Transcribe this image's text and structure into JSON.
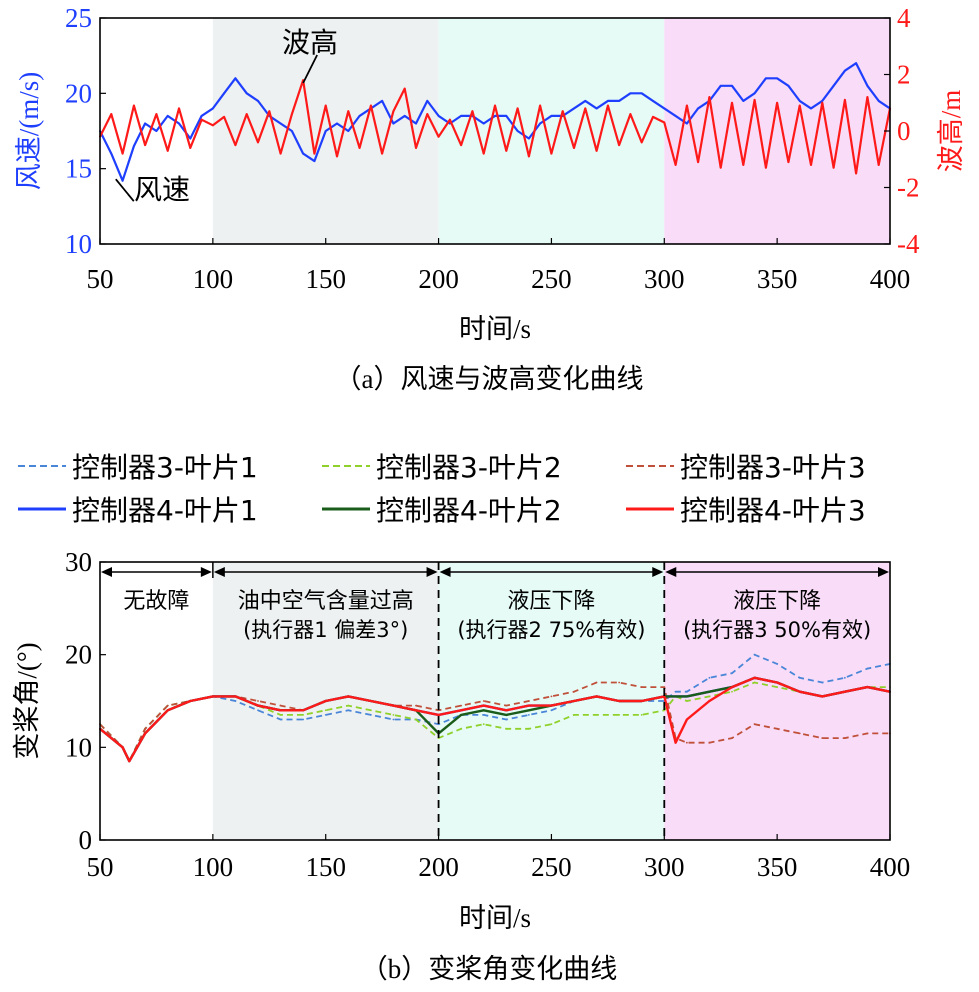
{
  "colors": {
    "blue": "#1f3fff",
    "red": "#ff1a1a",
    "green": "#8fd12a",
    "dark_green": "#1a5c1a",
    "brown": "#c0503a",
    "light_blue": "#4a86d8",
    "shade_gray": "#eef1f1",
    "shade_cyan": "#e6fbf6",
    "shade_pink": "#f8dcf8",
    "black": "#000000"
  },
  "chart_data": [
    {
      "type": "line",
      "panel": "a",
      "caption": "（a）风速与波高变化曲线",
      "xlabel": "时间/s",
      "ylabel_left": "风速/(m/s)",
      "ylabel_right": "波高/m",
      "xlim": [
        50,
        400
      ],
      "ylim_left": [
        10,
        25
      ],
      "ylim_right": [
        -4,
        4
      ],
      "x_ticks": [
        50,
        100,
        150,
        200,
        250,
        300,
        350,
        400
      ],
      "y_ticks_left": [
        10,
        15,
        20,
        25
      ],
      "y_ticks_right": [
        -4,
        -2,
        0,
        2,
        4
      ],
      "x_tick_labels": [
        "50",
        "100",
        "150",
        "200",
        "250",
        "300",
        "350",
        "400"
      ],
      "y_tick_labels_left": [
        "10",
        "15",
        "20",
        "25"
      ],
      "y_tick_labels_right": [
        "-4",
        "-2",
        "0",
        "2",
        "4"
      ],
      "regions": [
        {
          "x0": 100,
          "x1": 200,
          "color": "#eef1f1"
        },
        {
          "x0": 200,
          "x1": 300,
          "color": "#e6fbf6"
        },
        {
          "x0": 300,
          "x1": 400,
          "color": "#f8dcf8"
        }
      ],
      "annotations": [
        {
          "text": "波高",
          "x": 140,
          "y_right": 1.7
        },
        {
          "text": "风速",
          "x": 57,
          "y_left": 14.3
        }
      ],
      "series": [
        {
          "name": "风速",
          "axis": "left",
          "color": "#1f3fff",
          "x": [
            50,
            55,
            60,
            65,
            70,
            75,
            80,
            85,
            90,
            95,
            100,
            105,
            110,
            115,
            120,
            125,
            130,
            135,
            140,
            145,
            150,
            155,
            160,
            165,
            170,
            175,
            180,
            185,
            190,
            195,
            200,
            205,
            210,
            215,
            220,
            225,
            230,
            235,
            240,
            245,
            250,
            255,
            260,
            265,
            270,
            275,
            280,
            285,
            290,
            295,
            300,
            305,
            310,
            315,
            320,
            325,
            330,
            335,
            340,
            345,
            350,
            355,
            360,
            365,
            370,
            375,
            380,
            385,
            390,
            395,
            400
          ],
          "y": [
            17.5,
            16.0,
            14.2,
            16.5,
            18.0,
            17.5,
            18.5,
            18.0,
            17.0,
            18.5,
            19.0,
            20.0,
            21.0,
            20.0,
            19.5,
            18.5,
            18.0,
            17.5,
            16.0,
            15.5,
            17.5,
            18.0,
            17.5,
            18.5,
            19.0,
            19.5,
            18.0,
            18.5,
            18.0,
            19.5,
            18.5,
            18.0,
            18.5,
            18.5,
            18.0,
            18.5,
            18.5,
            17.5,
            17.0,
            18.0,
            18.5,
            18.5,
            19.0,
            19.5,
            19.0,
            19.5,
            19.5,
            20.0,
            20.0,
            19.5,
            19.0,
            18.5,
            18.0,
            19.0,
            19.5,
            20.5,
            20.5,
            19.5,
            20.0,
            21.0,
            21.0,
            20.5,
            19.5,
            19.0,
            19.5,
            20.5,
            21.5,
            22.0,
            20.5,
            19.5,
            19.0
          ]
        },
        {
          "name": "波高",
          "axis": "right",
          "color": "#ff1a1a",
          "x": [
            50,
            55,
            60,
            65,
            70,
            75,
            80,
            85,
            90,
            95,
            100,
            105,
            110,
            115,
            120,
            125,
            130,
            135,
            140,
            145,
            150,
            155,
            160,
            165,
            170,
            175,
            180,
            185,
            190,
            195,
            200,
            205,
            210,
            215,
            220,
            225,
            230,
            235,
            240,
            245,
            250,
            255,
            260,
            265,
            270,
            275,
            280,
            285,
            290,
            295,
            300,
            305,
            310,
            315,
            320,
            325,
            330,
            335,
            340,
            345,
            350,
            355,
            360,
            365,
            370,
            375,
            380,
            385,
            390,
            395,
            400
          ],
          "y": [
            -0.2,
            0.6,
            -0.8,
            0.9,
            -0.5,
            0.6,
            -0.7,
            0.8,
            -0.6,
            0.4,
            0.2,
            0.5,
            -0.5,
            0.6,
            -0.4,
            0.7,
            -0.8,
            0.6,
            1.8,
            -0.8,
            0.9,
            -0.9,
            0.7,
            -0.6,
            0.9,
            -0.8,
            0.7,
            1.5,
            -0.6,
            0.6,
            -0.2,
            0.4,
            -0.5,
            0.7,
            -0.8,
            0.9,
            -0.7,
            0.8,
            -0.9,
            0.9,
            -0.8,
            0.7,
            -0.6,
            0.8,
            -0.7,
            0.9,
            -0.5,
            0.6,
            -0.4,
            0.5,
            0.3,
            -1.2,
            0.9,
            -1.1,
            1.2,
            -1.3,
            1.0,
            -1.2,
            1.1,
            -1.3,
            1.0,
            -1.1,
            0.9,
            -1.2,
            1.0,
            -1.3,
            1.1,
            -1.5,
            1.2,
            -1.2,
            0.8
          ]
        }
      ]
    },
    {
      "type": "line",
      "panel": "b",
      "caption": "（b）变桨角变化曲线",
      "xlabel": "时间/s",
      "ylabel": "变桨角/(°)",
      "xlim": [
        50,
        400
      ],
      "ylim": [
        0,
        30
      ],
      "x_ticks": [
        50,
        100,
        150,
        200,
        250,
        300,
        350,
        400
      ],
      "y_ticks": [
        0,
        10,
        20,
        30
      ],
      "x_tick_labels": [
        "50",
        "100",
        "150",
        "200",
        "250",
        "300",
        "350",
        "400"
      ],
      "y_tick_labels": [
        "0",
        "10",
        "20",
        "30"
      ],
      "regions": [
        {
          "x0": 100,
          "x1": 200,
          "color": "#eef1f1"
        },
        {
          "x0": 200,
          "x1": 300,
          "color": "#e6fbf6"
        },
        {
          "x0": 300,
          "x1": 400,
          "color": "#f8dcf8"
        }
      ],
      "phase_labels": [
        {
          "x0": 50,
          "x1": 100,
          "line1": "无故障",
          "line2": ""
        },
        {
          "x0": 100,
          "x1": 200,
          "line1": "油中空气含量过高",
          "line2": "(执行器1 偏差3°)"
        },
        {
          "x0": 200,
          "x1": 300,
          "line1": "液压下降",
          "line2": "(执行器2 75%有效)"
        },
        {
          "x0": 300,
          "x1": 400,
          "line1": "液压下降",
          "line2": "(执行器3 50%有效)"
        }
      ],
      "legend": [
        {
          "label": "控制器3-叶片1",
          "color": "#4a86d8",
          "dash": true
        },
        {
          "label": "控制器3-叶片2",
          "color": "#8fd12a",
          "dash": true
        },
        {
          "label": "控制器3-叶片3",
          "color": "#c0503a",
          "dash": true
        },
        {
          "label": "控制器4-叶片1",
          "color": "#1f3fff",
          "dash": false
        },
        {
          "label": "控制器4-叶片2",
          "color": "#1a5c1a",
          "dash": false
        },
        {
          "label": "控制器4-叶片3",
          "color": "#ff1a1a",
          "dash": false
        }
      ],
      "x": [
        50,
        60,
        63,
        70,
        80,
        90,
        100,
        110,
        120,
        130,
        140,
        150,
        160,
        170,
        180,
        190,
        200,
        210,
        220,
        230,
        240,
        250,
        260,
        270,
        280,
        290,
        300,
        305,
        310,
        320,
        330,
        340,
        350,
        360,
        370,
        380,
        390,
        400
      ],
      "series": [
        {
          "name": "控制器3-叶片1",
          "y": [
            12.5,
            10.0,
            8.5,
            12.0,
            14.5,
            15.0,
            15.5,
            15.0,
            14.0,
            13.0,
            13.0,
            13.5,
            14.0,
            13.5,
            13.0,
            13.0,
            12.5,
            13.5,
            13.5,
            13.0,
            13.5,
            14.0,
            15.0,
            15.5,
            15.0,
            15.0,
            15.0,
            16.0,
            16.0,
            17.5,
            18.0,
            20.0,
            19.0,
            17.5,
            17.0,
            17.5,
            18.5,
            19.0
          ]
        },
        {
          "name": "控制器3-叶片2",
          "y": [
            12.5,
            10.0,
            8.5,
            12.0,
            14.5,
            15.0,
            15.5,
            15.5,
            14.5,
            13.5,
            13.5,
            14.0,
            14.5,
            14.0,
            13.5,
            13.0,
            11.0,
            12.0,
            12.5,
            12.0,
            12.0,
            12.5,
            13.5,
            13.5,
            13.5,
            13.5,
            14.0,
            15.5,
            15.0,
            15.5,
            16.0,
            17.0,
            16.5,
            16.0,
            15.5,
            16.0,
            16.5,
            16.5
          ]
        },
        {
          "name": "控制器3-叶片3",
          "y": [
            12.5,
            10.0,
            8.5,
            12.0,
            14.5,
            15.0,
            15.5,
            15.5,
            15.0,
            14.5,
            14.0,
            15.0,
            15.5,
            15.0,
            14.5,
            14.5,
            14.0,
            14.5,
            15.0,
            14.5,
            15.0,
            15.5,
            16.0,
            17.0,
            17.0,
            16.5,
            16.5,
            11.0,
            10.5,
            10.5,
            11.0,
            12.5,
            12.0,
            11.5,
            11.0,
            11.0,
            11.5,
            11.5
          ]
        },
        {
          "name": "控制器4-叶片1",
          "y": [
            12.0,
            10.0,
            8.5,
            11.5,
            14.0,
            15.0,
            15.5,
            15.5,
            14.5,
            14.0,
            14.0,
            15.0,
            15.5,
            15.0,
            14.5,
            14.0,
            13.5,
            14.0,
            14.5,
            14.0,
            14.5,
            14.5,
            15.0,
            15.5,
            15.0,
            15.0,
            15.5,
            15.5,
            15.5,
            16.0,
            16.5,
            17.5,
            17.0,
            16.0,
            15.5,
            16.0,
            16.5,
            16.0
          ]
        },
        {
          "name": "控制器4-叶片2",
          "y": [
            12.0,
            10.0,
            8.5,
            11.5,
            14.0,
            15.0,
            15.5,
            15.5,
            14.5,
            14.0,
            14.0,
            15.0,
            15.5,
            15.0,
            14.5,
            14.0,
            11.5,
            13.5,
            14.0,
            13.5,
            14.0,
            14.5,
            15.0,
            15.5,
            15.0,
            15.0,
            15.5,
            15.5,
            15.5,
            16.0,
            16.5,
            17.5,
            17.0,
            16.0,
            15.5,
            16.0,
            16.5,
            16.0
          ]
        },
        {
          "name": "控制器4-叶片3",
          "y": [
            12.0,
            10.0,
            8.5,
            11.5,
            14.0,
            15.0,
            15.5,
            15.5,
            14.5,
            14.0,
            14.0,
            15.0,
            15.5,
            15.0,
            14.5,
            14.0,
            13.5,
            14.0,
            14.5,
            14.0,
            14.5,
            14.5,
            15.0,
            15.5,
            15.0,
            15.0,
            15.5,
            10.5,
            13.0,
            15.0,
            16.5,
            17.5,
            17.0,
            16.0,
            15.5,
            16.0,
            16.5,
            16.0
          ]
        }
      ]
    }
  ]
}
